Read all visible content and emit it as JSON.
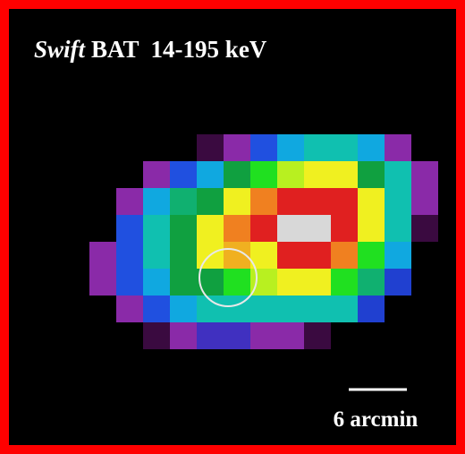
{
  "title": {
    "emphasis": "Swift",
    "text": "BAT  14-195 keV"
  },
  "scale_bar": {
    "label": "6 arcmin"
  }
}
